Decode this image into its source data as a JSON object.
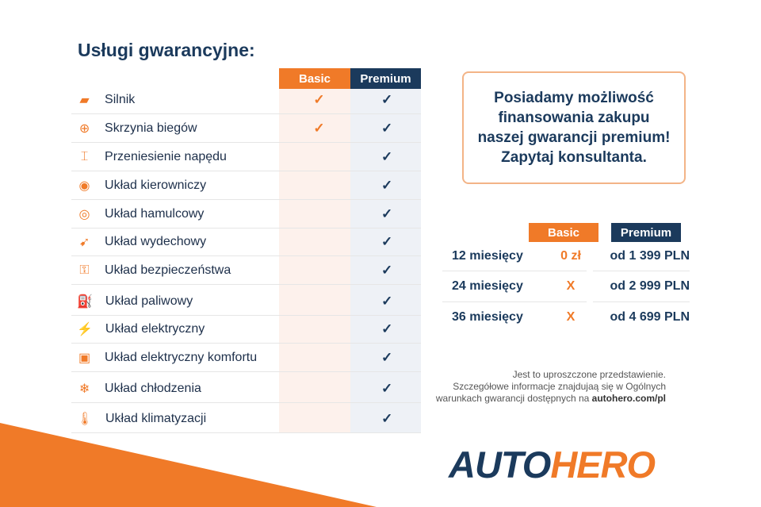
{
  "title": "Usługi gwarancyjne:",
  "columns": {
    "basic": "Basic",
    "premium": "Premium"
  },
  "services": [
    {
      "label": "Silnik",
      "icon": "engine-icon",
      "glyph": "▰",
      "basic": "✓",
      "premium": "✓"
    },
    {
      "label": "Skrzynia biegów",
      "icon": "gearbox-icon",
      "glyph": "⊕",
      "basic": "✓",
      "premium": "✓"
    },
    {
      "label": "Przeniesienie napędu",
      "icon": "drivetrain-icon",
      "glyph": "⌶",
      "basic": "",
      "premium": "✓"
    },
    {
      "label": "Układ kierowniczy",
      "icon": "steering-wheel-icon",
      "glyph": "◉",
      "basic": "",
      "premium": "✓"
    },
    {
      "label": "Układ hamulcowy",
      "icon": "brake-disc-icon",
      "glyph": "◎",
      "basic": "",
      "premium": "✓"
    },
    {
      "label": "Układ wydechowy",
      "icon": "exhaust-icon",
      "glyph": "➹",
      "basic": "",
      "premium": "✓"
    },
    {
      "label": "Układ bezpieczeństwa",
      "icon": "seatbelt-icon",
      "glyph": "⚿",
      "basic": "",
      "premium": "✓"
    },
    {
      "label": "Układ paliwowy",
      "icon": "fuel-icon",
      "glyph": "⛽",
      "basic": "",
      "premium": "✓"
    },
    {
      "label": "Układ elektryczny",
      "icon": "battery-icon",
      "glyph": "⚡",
      "basic": "",
      "premium": "✓"
    },
    {
      "label": "Układ elektryczny komfortu",
      "icon": "chip-icon",
      "glyph": "▣",
      "basic": "",
      "premium": "✓"
    },
    {
      "label": "Układ chłodzenia",
      "icon": "snowflake-icon",
      "glyph": "❄",
      "basic": "",
      "premium": "✓"
    },
    {
      "label": "Układ klimatyzacji",
      "icon": "thermometer-icon",
      "glyph": "🌡",
      "basic": "",
      "premium": "✓"
    }
  ],
  "promo": [
    "Posiadamy możliwość",
    "finansowania zakupu",
    "naszej gwarancji premium!",
    "Zapytaj konsultanta."
  ],
  "pricing": {
    "basic": "Basic",
    "premium": "Premium",
    "rows": [
      {
        "months": "12 miesięcy",
        "basic": "0 zł",
        "premium": "od 1 399 PLN"
      },
      {
        "months": "24 miesięcy",
        "basic": "X",
        "premium": "od 2 999 PLN"
      },
      {
        "months": "36 miesięcy",
        "basic": "X",
        "premium": "od 4 699 PLN"
      }
    ]
  },
  "disclaimer": {
    "line1": "Jest to uproszczone przedstawienie.",
    "line2": "Szczegółowe informacje znajdujaą się w Ogólnych",
    "line3": "warunkach gwarancji dostępnych na ",
    "link": "autohero.com/pl"
  },
  "logo": {
    "part1": "AUTO",
    "part2": "HERO"
  },
  "colors": {
    "orange": "#f07a28",
    "navy": "#1b3a5c"
  }
}
